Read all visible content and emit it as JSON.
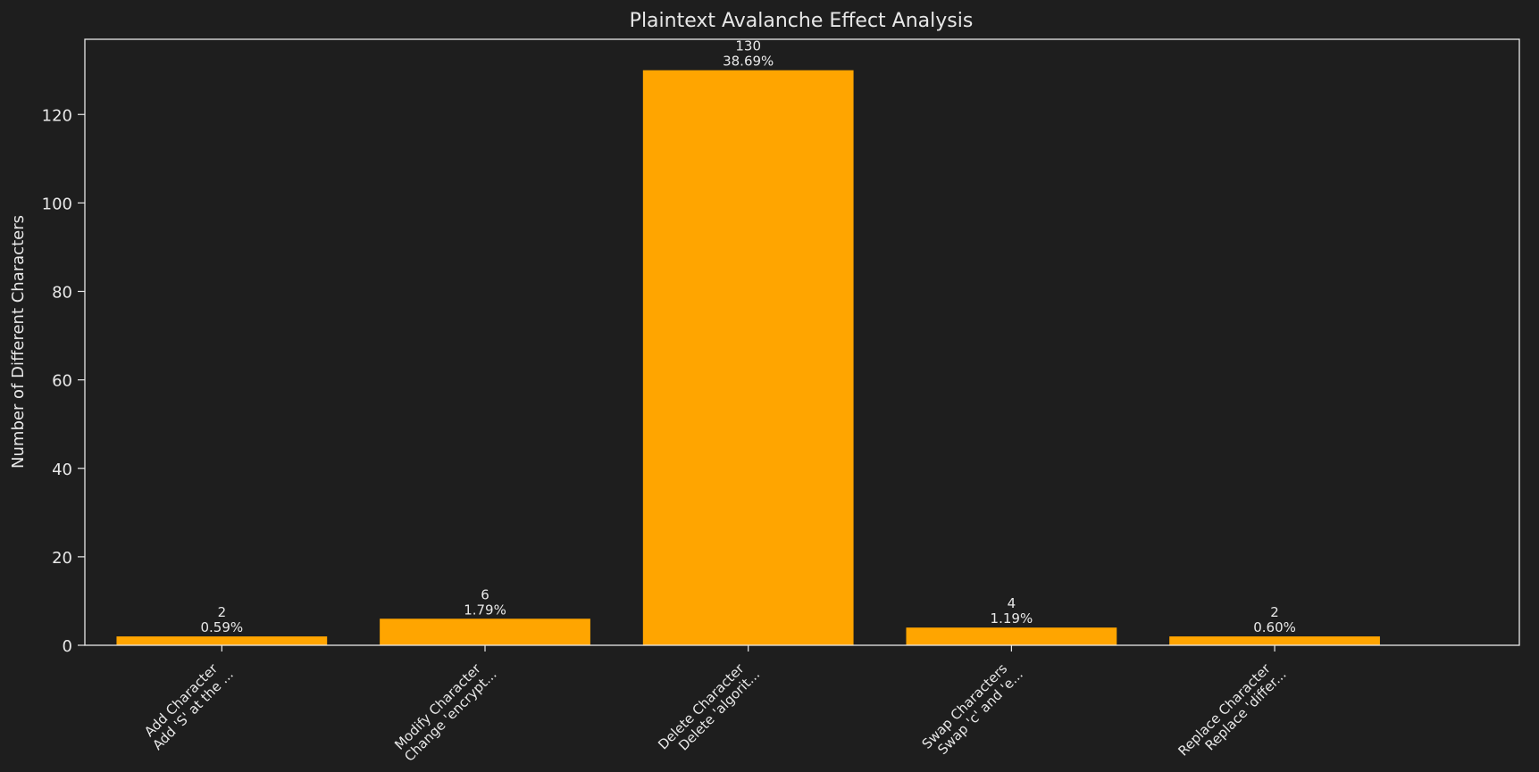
{
  "chart_data": {
    "type": "bar",
    "title": "Plaintext Avalanche Effect Analysis",
    "xlabel": "",
    "ylabel": "Number of Different Characters",
    "ylim": [
      0,
      137
    ],
    "yticks": [
      0,
      20,
      40,
      60,
      80,
      100,
      120
    ],
    "grid": false,
    "categories": [
      [
        "Add Character",
        "Add 'S' at the ..."
      ],
      [
        "Modify Character",
        "Change 'encrypt..."
      ],
      [
        "Delete Character",
        "Delete 'algorit..."
      ],
      [
        "Swap Characters",
        "Swap 'c' and 'e..."
      ],
      [
        "Replace Character",
        "Replace 'differ..."
      ]
    ],
    "values": [
      2,
      6,
      130,
      4,
      2
    ],
    "value_labels": [
      "2",
      "6",
      "130",
      "4",
      "2"
    ],
    "percent_labels": [
      "0.59%",
      "1.79%",
      "38.69%",
      "1.19%",
      "0.60%"
    ],
    "bar_color": "#ffa500",
    "background_color": "#1e1e1e",
    "text_color": "#e8e8e8",
    "axis_color": "#e8e8e8"
  }
}
